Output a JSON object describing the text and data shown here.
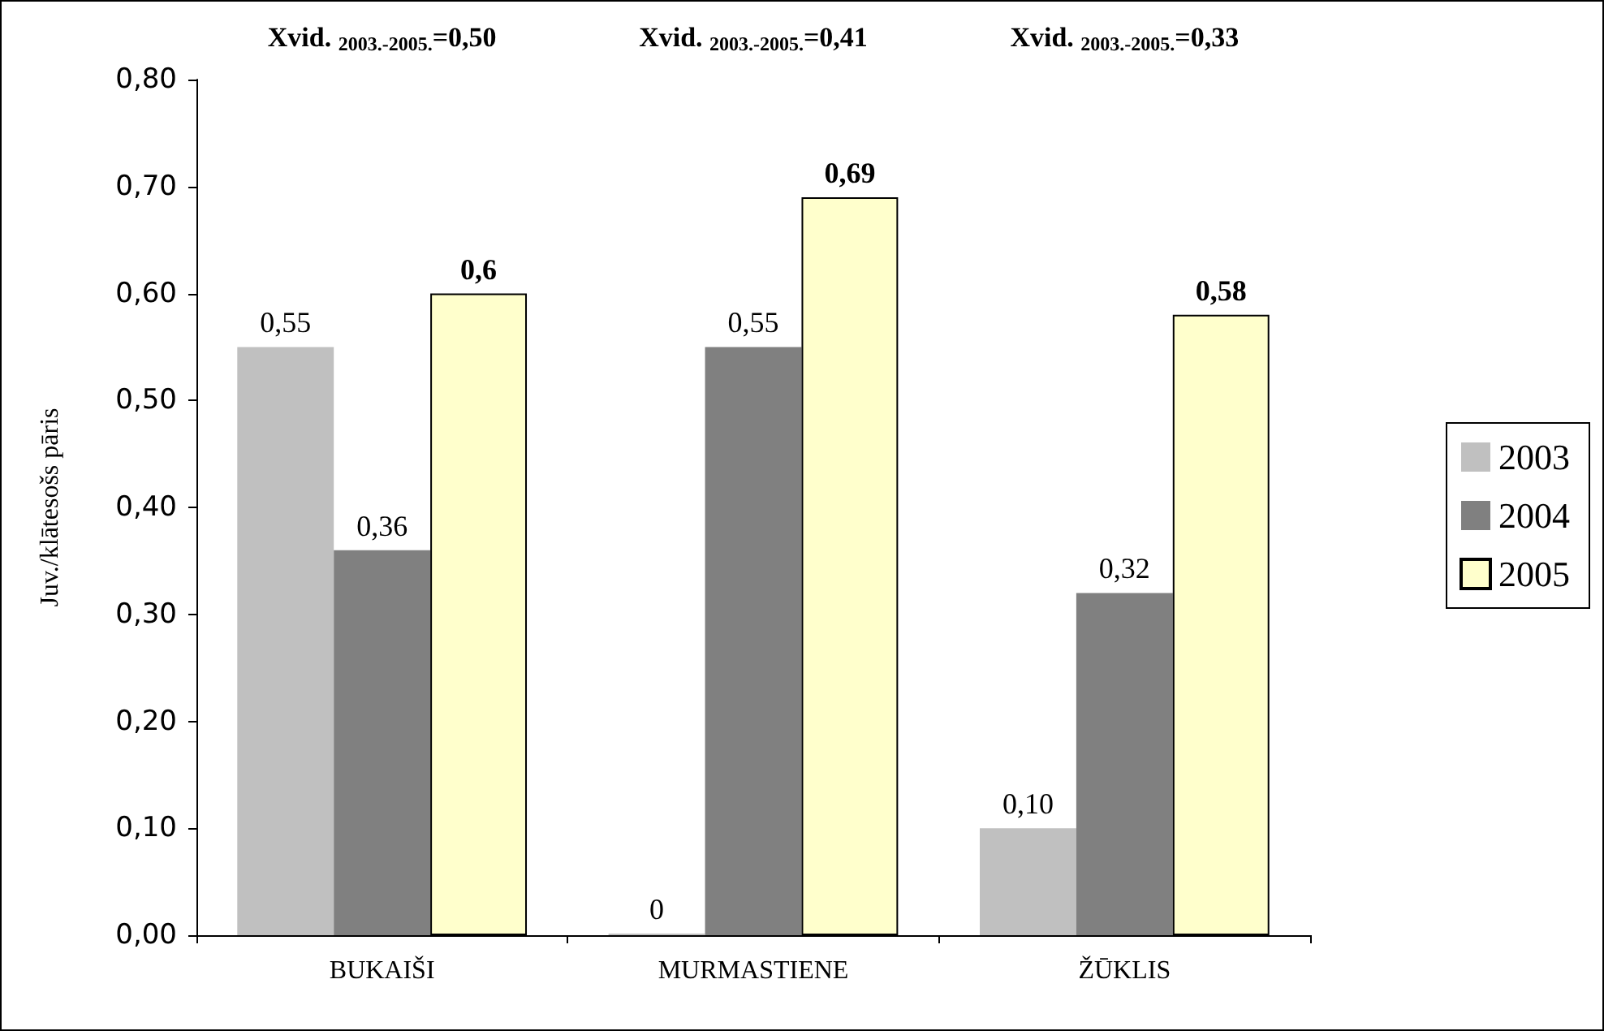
{
  "chart_data": {
    "type": "bar",
    "ylabel": "Juv./klātesošs pāris",
    "categories": [
      "BUKAIŠI",
      "MURMASTIENE",
      "ŽŪKLIS"
    ],
    "series": [
      {
        "name": "2003",
        "color": "#c0c0c0",
        "values": [
          0.55,
          0,
          0.1
        ],
        "value_labels": [
          "0,55",
          "0",
          "0,10"
        ]
      },
      {
        "name": "2004",
        "color": "#808080",
        "values": [
          0.36,
          0.55,
          0.32
        ],
        "value_labels": [
          "0,36",
          "0,55",
          "0,32"
        ]
      },
      {
        "name": "2005",
        "color": "#ffffcc",
        "values": [
          0.6,
          0.69,
          0.58
        ],
        "value_labels": [
          "0,6",
          "0,69",
          "0,58"
        ]
      }
    ],
    "ylim": [
      0,
      0.8
    ],
    "yticks": [
      {
        "value": 0,
        "label": "0,00"
      },
      {
        "value": 0.1,
        "label": "0,10"
      },
      {
        "value": 0.2,
        "label": "0,20"
      },
      {
        "value": 0.3,
        "label": "0,30"
      },
      {
        "value": 0.4,
        "label": "0,40"
      },
      {
        "value": 0.5,
        "label": "0,50"
      },
      {
        "value": 0.6,
        "label": "0,60"
      },
      {
        "value": 0.7,
        "label": "0,70"
      },
      {
        "value": 0.8,
        "label": "0,80"
      }
    ],
    "annotations": [
      "Xvid. $_{2003.-2005.}$=0,50",
      "Xvid. $_{2003.-2005.}$=0,41",
      "Xvid. $_{2003.-2005.}$=0,33"
    ],
    "grid": false,
    "legend": "right"
  }
}
